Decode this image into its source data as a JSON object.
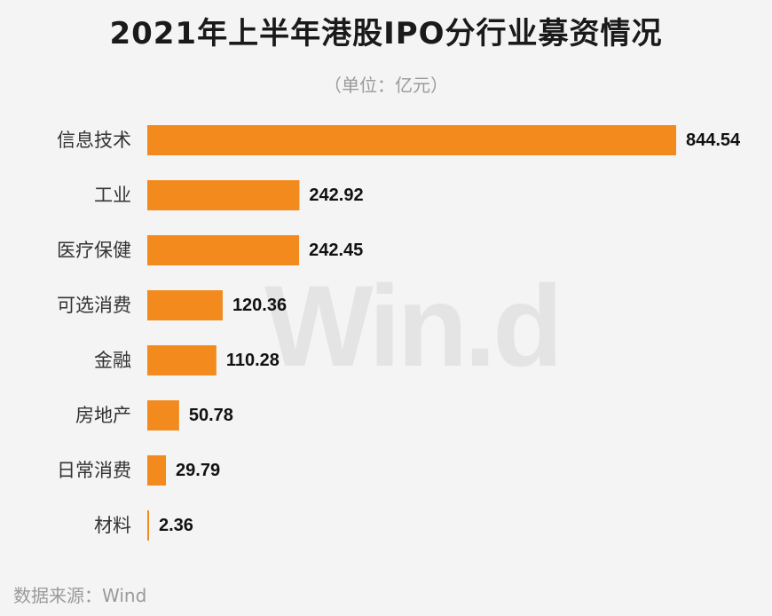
{
  "title": "2021年上半年港股IPO分行业募资情况",
  "subtitle": "（单位：亿元）",
  "watermark": "Win.d",
  "source": "数据来源：Wind",
  "colors": {
    "bar": "#f28a1e",
    "background": "#f4f4f4",
    "label": "#333333",
    "value": "#111111"
  },
  "chart_data": {
    "type": "bar",
    "orientation": "horizontal",
    "categories": [
      "信息技术",
      "工业",
      "医疗保健",
      "可选消费",
      "金融",
      "房地产",
      "日常消费",
      "材料"
    ],
    "values": [
      844.54,
      242.92,
      242.45,
      120.36,
      110.28,
      50.78,
      29.79,
      2.36
    ],
    "value_labels": [
      "844.54",
      "242.92",
      "242.45",
      "120.36",
      "110.28",
      "50.78",
      "29.79",
      "2.36"
    ],
    "unit": "亿元",
    "grid": false,
    "legend": false
  }
}
